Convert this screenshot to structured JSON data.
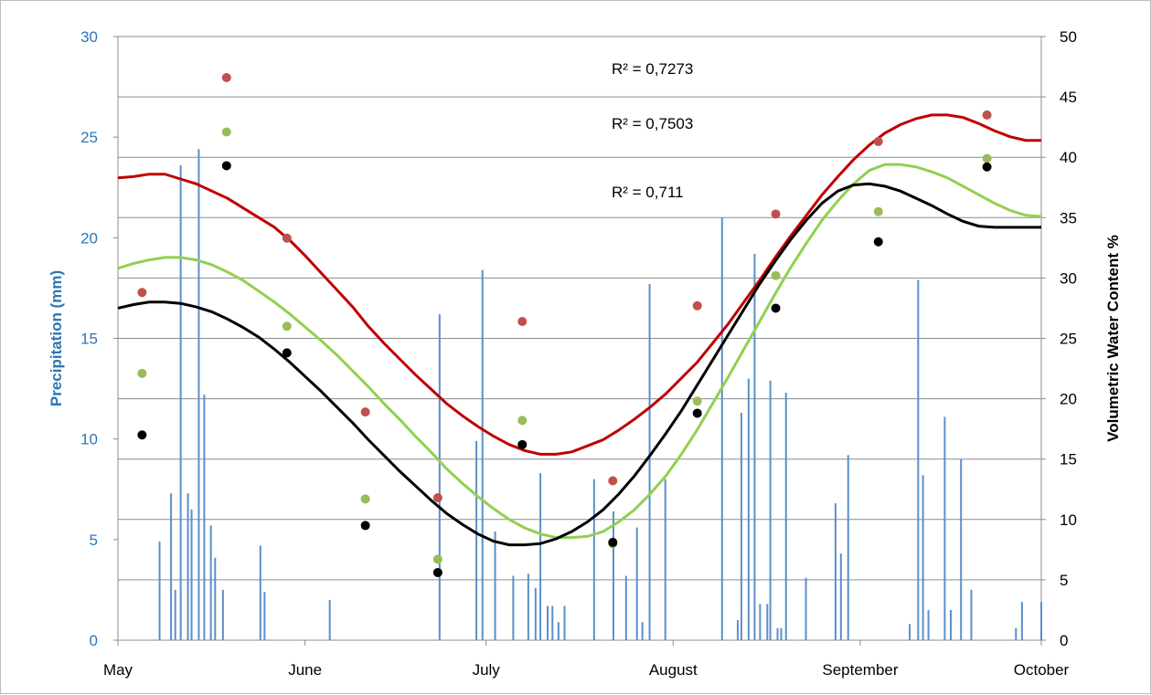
{
  "chart_data": {
    "type": "bar+scatter+line",
    "x_axis": {
      "tick_labels": [
        "May",
        "June",
        "July",
        "August",
        "September",
        "October"
      ],
      "tick_days": [
        0,
        31,
        61,
        92,
        123,
        153
      ],
      "range_days": [
        0,
        153
      ]
    },
    "y_left": {
      "label": "Precipitation (mm)",
      "ylim": [
        0,
        30
      ],
      "ticks": [
        0,
        5,
        10,
        15,
        20,
        25,
        30
      ],
      "color": "#2e75b6"
    },
    "y_right": {
      "label": "Volumetric Water Content %",
      "ylim": [
        0,
        50
      ],
      "ticks": [
        0,
        5,
        10,
        15,
        20,
        25,
        30,
        35,
        40,
        45,
        50
      ],
      "color": "#000000"
    },
    "grid": "horizontal",
    "precipitation_bars": {
      "color": "#5b8fc9",
      "x_days": [
        6.9,
        8.8,
        9.5,
        10.4,
        11.6,
        12.2,
        13.4,
        14.3,
        15.4,
        16.1,
        17.4,
        23.6,
        24.3,
        35.1,
        53.3,
        59.4,
        60.4,
        62.5,
        65.5,
        68.0,
        69.2,
        70.0,
        71.2,
        72.0,
        73.0,
        74.0,
        78.9,
        82.1,
        84.2,
        86.0,
        86.9,
        88.1,
        90.7,
        100.1,
        102.7,
        103.3,
        104.5,
        105.5,
        106.4,
        107.6,
        108.1,
        109.3,
        109.9,
        110.7,
        114.0,
        118.9,
        119.8,
        121.0,
        131.2,
        132.6,
        133.4,
        134.3,
        137.0,
        138.0,
        139.7,
        141.4,
        148.8,
        149.8,
        153.0
      ],
      "values": [
        4.9,
        7.3,
        2.5,
        23.6,
        7.3,
        6.5,
        24.4,
        12.2,
        5.7,
        4.1,
        2.5,
        4.7,
        2.4,
        2.0,
        16.2,
        9.9,
        18.4,
        5.4,
        3.2,
        3.3,
        2.6,
        8.3,
        1.7,
        1.7,
        0.9,
        1.7,
        8.0,
        6.4,
        3.2,
        5.6,
        0.9,
        17.7,
        8.0,
        21.0,
        1.0,
        11.3,
        13.0,
        19.2,
        1.8,
        1.8,
        12.9,
        0.6,
        0.6,
        12.3,
        3.1,
        6.8,
        4.3,
        9.2,
        0.8,
        17.9,
        8.2,
        1.5,
        11.1,
        1.5,
        9.0,
        2.5,
        0.6,
        1.9,
        1.9
      ]
    },
    "series": [
      {
        "color": "#c0504d",
        "line_color": "#c00000",
        "r2_label": "R² = 0,7273",
        "points_days": [
          4,
          18,
          28,
          41,
          53,
          67,
          82,
          96,
          109,
          126,
          144
        ],
        "points_vwc": [
          28.8,
          46.6,
          33.3,
          18.9,
          11.8,
          26.4,
          13.2,
          27.7,
          35.3,
          41.3,
          43.5
        ],
        "curve_vwc": [
          38.3,
          38.4,
          38.6,
          38.6,
          38.2,
          37.8,
          37.2,
          36.6,
          35.8,
          35.0,
          34.2,
          33.1,
          31.8,
          30.4,
          29.0,
          27.6,
          26.0,
          24.6,
          23.3,
          22.0,
          20.8,
          19.6,
          18.6,
          17.7,
          16.9,
          16.2,
          15.7,
          15.4,
          15.4,
          15.6,
          16.1,
          16.6,
          17.4,
          18.3,
          19.3,
          20.4,
          21.7,
          23.0,
          24.6,
          26.2,
          28.0,
          29.8,
          31.7,
          33.5,
          35.2,
          36.9,
          38.4,
          39.8,
          41.0,
          42.0,
          42.7,
          43.2,
          43.5,
          43.5,
          43.3,
          42.8,
          42.2,
          41.7,
          41.4,
          41.4
        ]
      },
      {
        "color": "#9bbb59",
        "line_color": "#92d050",
        "r2_label": "R² = 0,7503",
        "points_days": [
          4,
          18,
          28,
          41,
          53,
          67,
          82,
          96,
          109,
          126,
          144
        ],
        "points_vwc": [
          22.1,
          42.1,
          26.0,
          11.7,
          6.7,
          18.2,
          8.0,
          19.8,
          30.2,
          35.5,
          39.9
        ],
        "curve_vwc": [
          30.8,
          31.2,
          31.5,
          31.7,
          31.7,
          31.5,
          31.1,
          30.5,
          29.8,
          28.9,
          28.0,
          27.0,
          25.9,
          24.8,
          23.6,
          22.3,
          21.0,
          19.6,
          18.3,
          16.9,
          15.6,
          14.2,
          13.0,
          11.9,
          10.9,
          10.0,
          9.3,
          8.8,
          8.5,
          8.5,
          8.6,
          9.0,
          9.8,
          10.8,
          12.1,
          13.6,
          15.4,
          17.4,
          19.6,
          21.8,
          24.1,
          26.4,
          28.7,
          30.9,
          32.9,
          34.8,
          36.4,
          37.8,
          38.9,
          39.4,
          39.4,
          39.2,
          38.8,
          38.3,
          37.6,
          36.9,
          36.2,
          35.6,
          35.2,
          35.1
        ]
      },
      {
        "color": "#000000",
        "line_color": "#000000",
        "r2_label": "R² = 0,711",
        "points_days": [
          4,
          18,
          28,
          41,
          53,
          67,
          82,
          96,
          109,
          126,
          144
        ],
        "points_vwc": [
          17.0,
          39.3,
          23.8,
          9.5,
          5.6,
          16.2,
          8.1,
          18.8,
          27.5,
          33.0,
          39.2
        ],
        "curve_vwc": [
          27.5,
          27.8,
          28.0,
          28.0,
          27.9,
          27.6,
          27.2,
          26.6,
          25.9,
          25.1,
          24.1,
          23.0,
          21.8,
          20.6,
          19.3,
          18.0,
          16.6,
          15.3,
          14.0,
          12.8,
          11.6,
          10.5,
          9.6,
          8.8,
          8.2,
          7.9,
          7.9,
          8.0,
          8.4,
          9.0,
          9.8,
          10.8,
          12.1,
          13.6,
          15.3,
          17.1,
          19.0,
          21.1,
          23.2,
          25.3,
          27.4,
          29.5,
          31.4,
          33.2,
          34.8,
          36.2,
          37.2,
          37.7,
          37.8,
          37.6,
          37.2,
          36.6,
          36.0,
          35.3,
          34.7,
          34.3,
          34.2,
          34.2,
          34.2,
          34.2
        ]
      }
    ]
  }
}
